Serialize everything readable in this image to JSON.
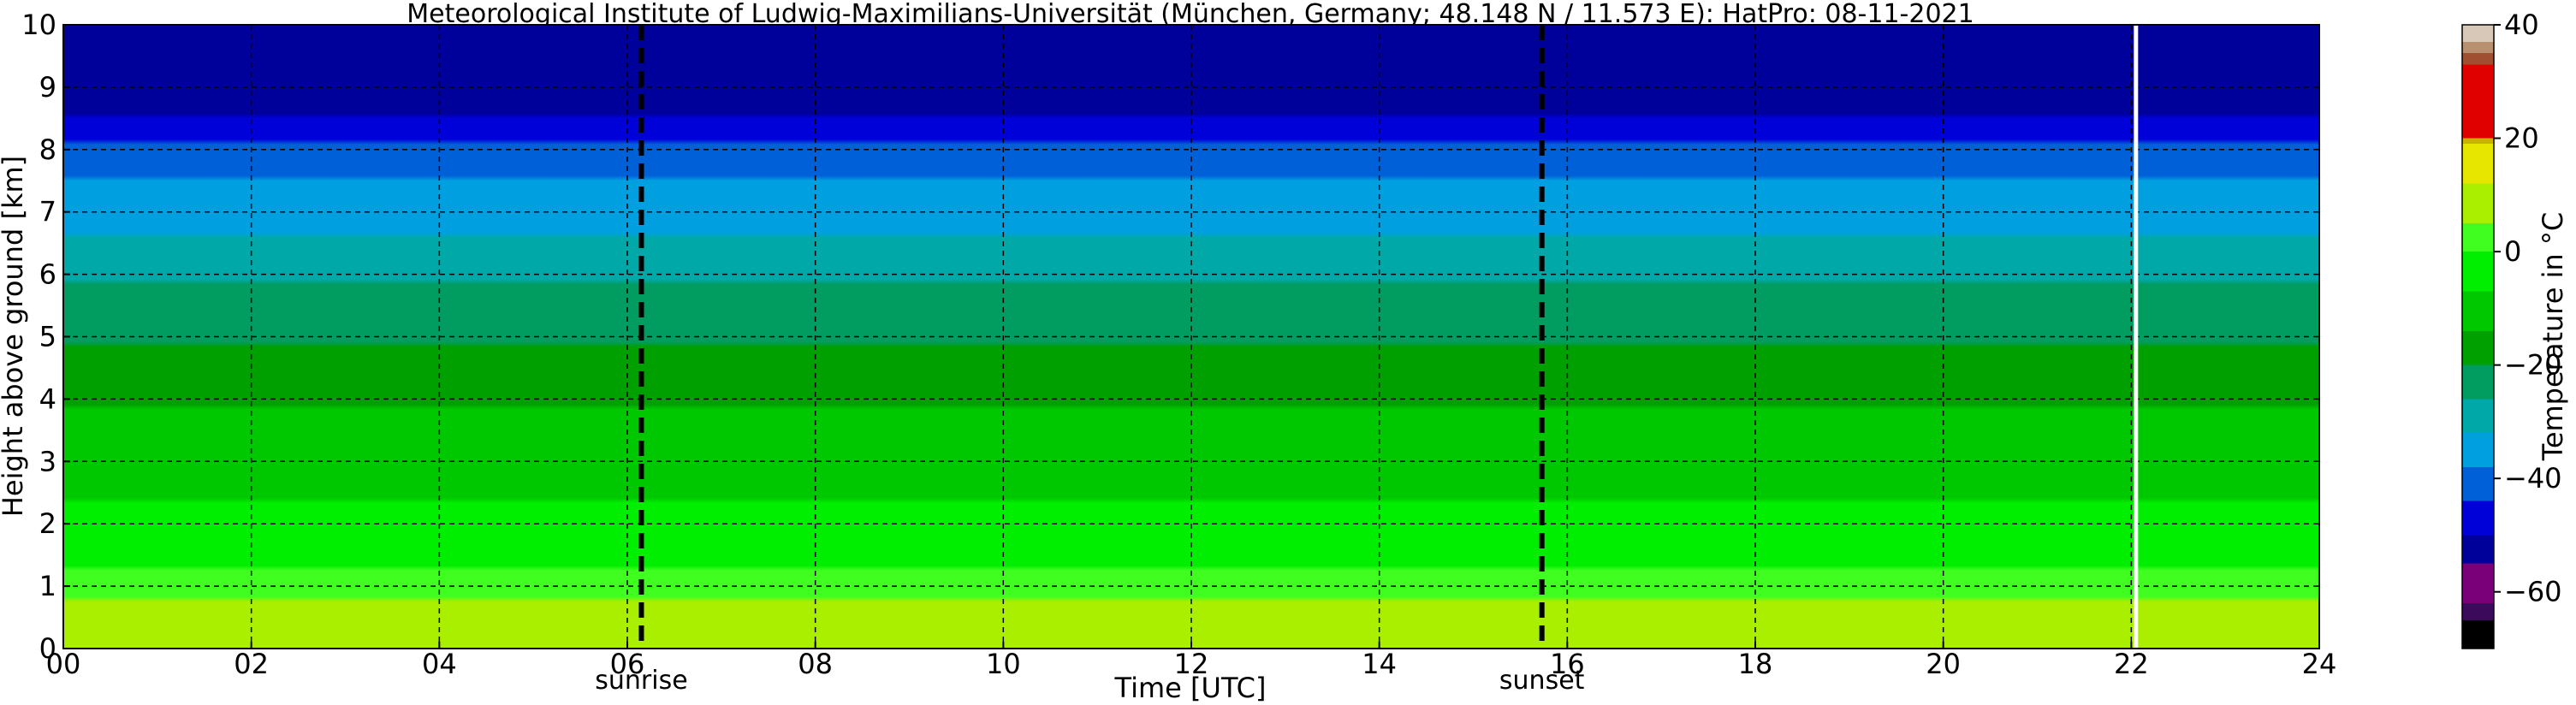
{
  "chart_data": {
    "type": "heatmap",
    "title": "Meteorological Institute of Ludwig-Maximilians-Universität (München, Germany; 48.148 N / 11.573 E):    HatPro: 08-11-2021",
    "xlabel": "Time [UTC]",
    "ylabel": "Height above ground [km]",
    "colorbar_label": "Temperature in °C",
    "xlim": [
      0,
      24
    ],
    "ylim": [
      0,
      10
    ],
    "xticks": [
      "00",
      "02",
      "04",
      "06",
      "08",
      "10",
      "12",
      "14",
      "16",
      "18",
      "20",
      "22",
      "24"
    ],
    "yticks": [
      "0",
      "1",
      "2",
      "3",
      "4",
      "5",
      "6",
      "7",
      "8",
      "9",
      "10"
    ],
    "grid": true,
    "colorbar_range": [
      -70,
      40
    ],
    "colorbar_ticks": [
      "40",
      "20",
      "0",
      "−20",
      "−40",
      "−60"
    ],
    "colorbar_tick_values": [
      40,
      20,
      0,
      -20,
      -40,
      -60
    ],
    "colorbar_colors": [
      {
        "from": -70,
        "to": -65,
        "color": "#000000"
      },
      {
        "from": -65,
        "to": -62,
        "color": "#3c0a5a"
      },
      {
        "from": -62,
        "to": -55,
        "color": "#7a007a"
      },
      {
        "from": -55,
        "to": -50,
        "color": "#00009a"
      },
      {
        "from": -50,
        "to": -44,
        "color": "#0000d8"
      },
      {
        "from": -44,
        "to": -38,
        "color": "#0060d8"
      },
      {
        "from": -38,
        "to": -32,
        "color": "#00a0e0"
      },
      {
        "from": -32,
        "to": -26,
        "color": "#00a8a8"
      },
      {
        "from": -26,
        "to": -20,
        "color": "#009c60"
      },
      {
        "from": -20,
        "to": -14,
        "color": "#00a000"
      },
      {
        "from": -14,
        "to": -7,
        "color": "#00c800"
      },
      {
        "from": -7,
        "to": 0,
        "color": "#00ee00"
      },
      {
        "from": 0,
        "to": 5,
        "color": "#40ff20"
      },
      {
        "from": 5,
        "to": 12,
        "color": "#aaee00"
      },
      {
        "from": 12,
        "to": 19,
        "color": "#e6e600"
      },
      {
        "from": 19,
        "to": 20,
        "color": "#c8b400"
      },
      {
        "from": 20,
        "to": 33,
        "color": "#e00000"
      },
      {
        "from": 33,
        "to": 35,
        "color": "#a05030"
      },
      {
        "from": 35,
        "to": 37,
        "color": "#b89070"
      },
      {
        "from": 37,
        "to": 40,
        "color": "#d8c8b8"
      }
    ],
    "temperature_profile": [
      {
        "height_km": 0.0,
        "temp_c": 10
      },
      {
        "height_km": 0.5,
        "temp_c": 8
      },
      {
        "height_km": 1.0,
        "temp_c": 3
      },
      {
        "height_km": 1.5,
        "temp_c": -2
      },
      {
        "height_km": 2.0,
        "temp_c": -5
      },
      {
        "height_km": 2.5,
        "temp_c": -8
      },
      {
        "height_km": 3.0,
        "temp_c": -10
      },
      {
        "height_km": 3.5,
        "temp_c": -12
      },
      {
        "height_km": 4.0,
        "temp_c": -15
      },
      {
        "height_km": 4.5,
        "temp_c": -18
      },
      {
        "height_km": 5.0,
        "temp_c": -21
      },
      {
        "height_km": 5.5,
        "temp_c": -24
      },
      {
        "height_km": 6.0,
        "temp_c": -27
      },
      {
        "height_km": 6.5,
        "temp_c": -31
      },
      {
        "height_km": 7.0,
        "temp_c": -35
      },
      {
        "height_km": 7.5,
        "temp_c": -38
      },
      {
        "height_km": 8.0,
        "temp_c": -42
      },
      {
        "height_km": 8.5,
        "temp_c": -50
      },
      {
        "height_km": 9.0,
        "temp_c": -52
      },
      {
        "height_km": 10.0,
        "temp_c": -53
      }
    ],
    "markers": [
      {
        "label": "sunrise",
        "x": 6.15
      },
      {
        "label": "sunset",
        "x": 15.73
      }
    ],
    "data_gap_x": 22.05
  }
}
